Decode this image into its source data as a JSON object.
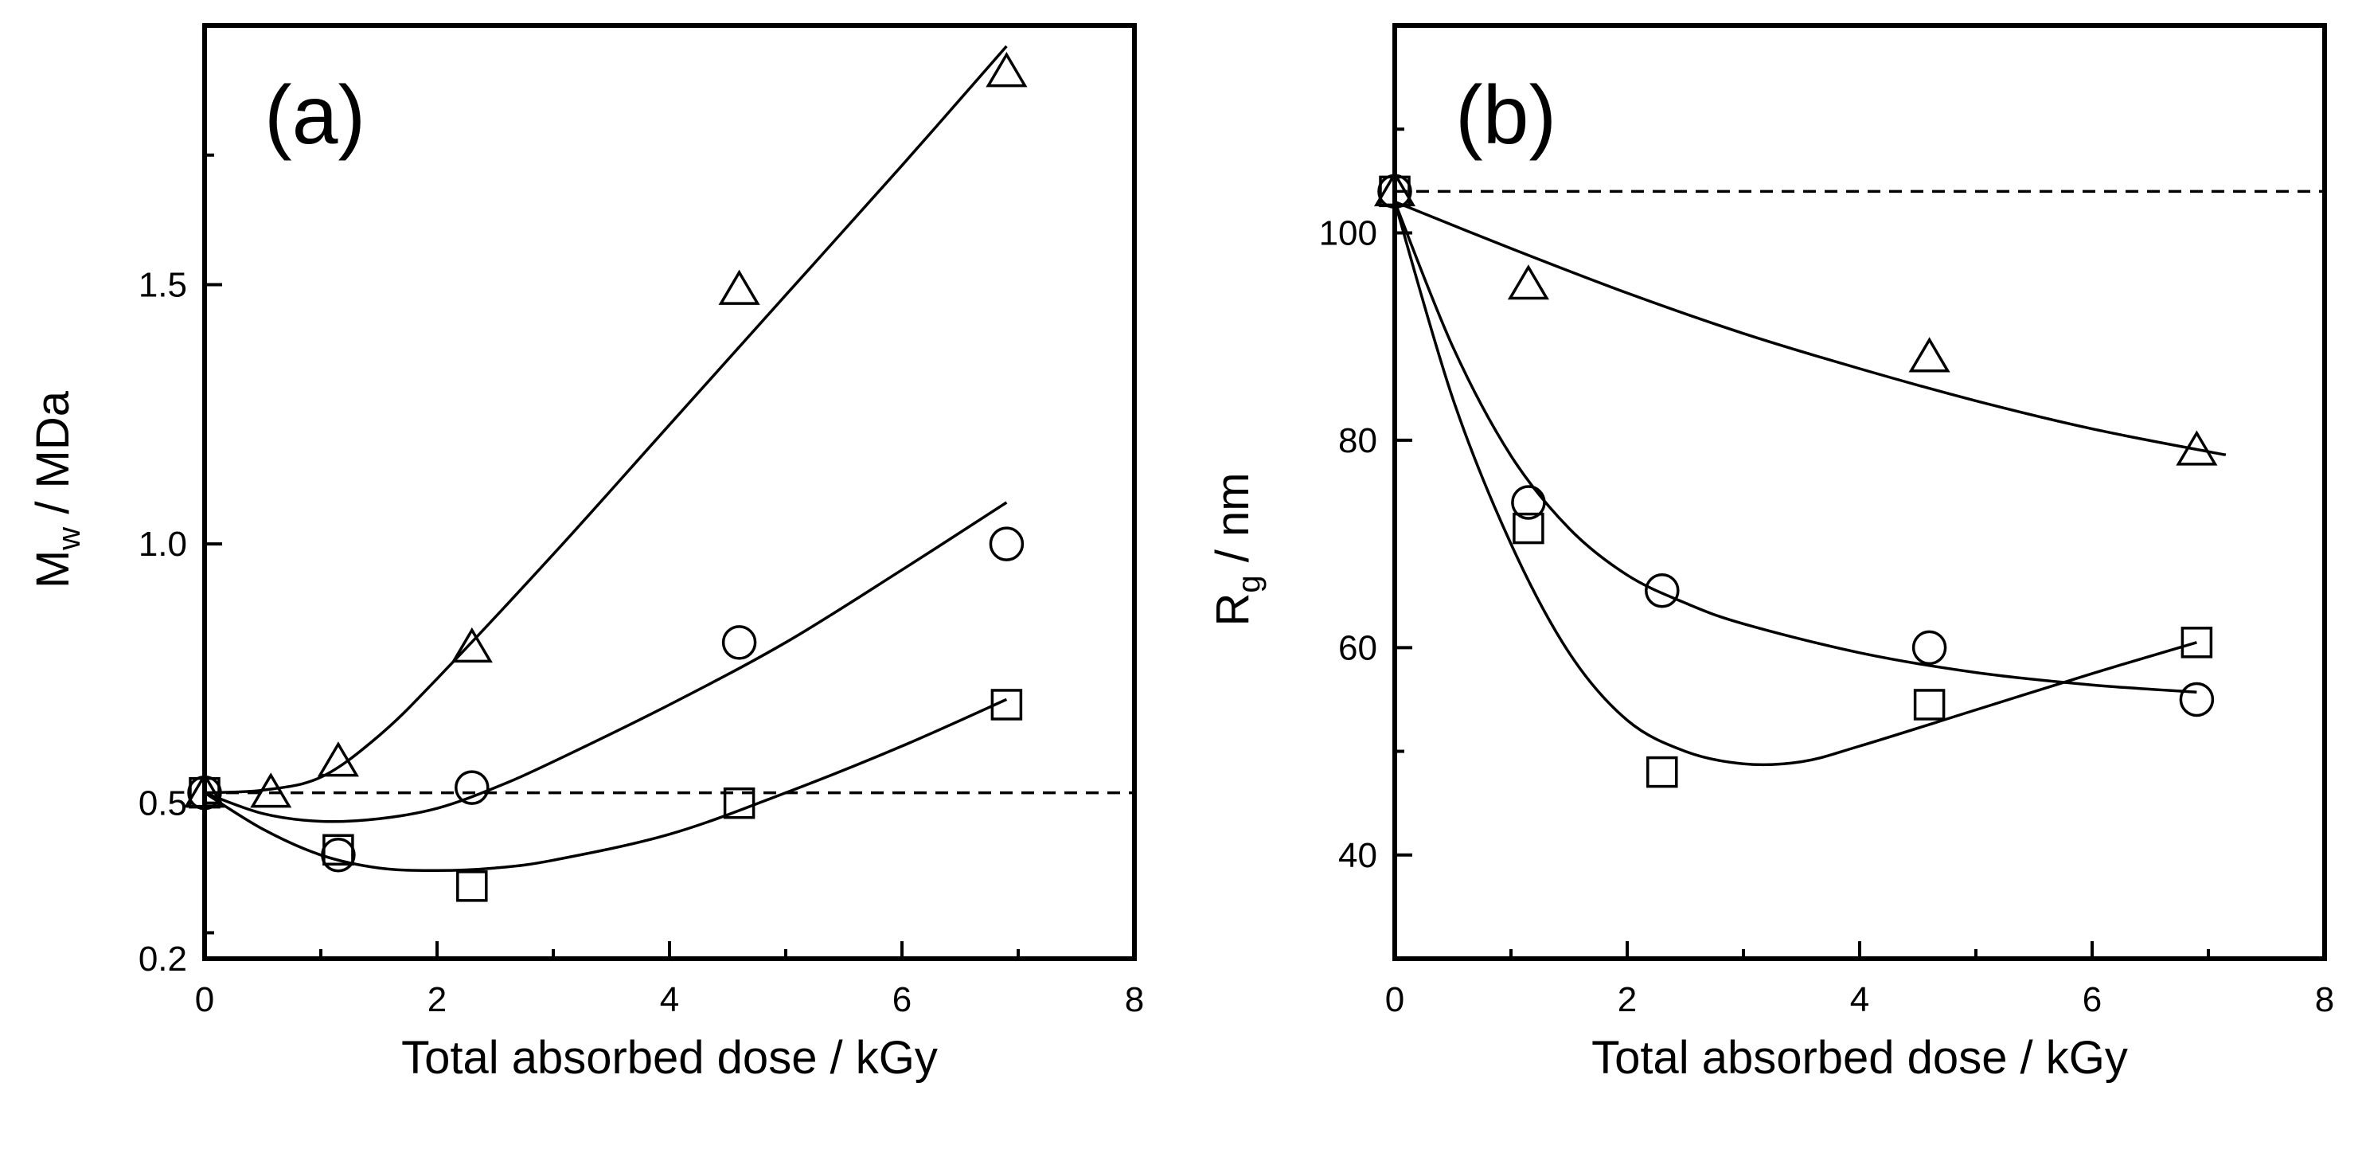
{
  "chart_data": [
    {
      "panel": "(a)",
      "type": "scatter",
      "xlabel": "Total absorbed dose / kGy",
      "ylabel": {
        "main": "M",
        "sub": "w",
        "rest": " / MDa"
      },
      "xlim": [
        0,
        8
      ],
      "ylim": [
        0.2,
        2.0
      ],
      "xticks": [
        "0",
        "2",
        "4",
        "6",
        "8"
      ],
      "yticks": [
        {
          "value": 0.2,
          "label": "0.2"
        },
        {
          "value": 0.5,
          "label": "0.5"
        },
        {
          "value": 1.0,
          "label": "1.0"
        },
        {
          "value": 1.5,
          "label": "1.5"
        }
      ],
      "reference_line": {
        "y": 0.52,
        "style": "dashed"
      },
      "series": [
        {
          "name": "triangle",
          "marker": "triangle",
          "x": [
            0,
            0.57,
            1.15,
            2.3,
            4.6,
            6.9
          ],
          "y": [
            0.52,
            0.52,
            0.58,
            0.8,
            1.49,
            1.91
          ]
        },
        {
          "name": "circle",
          "marker": "circle",
          "x": [
            0,
            1.15,
            2.3,
            4.6,
            6.9
          ],
          "y": [
            0.52,
            0.4,
            0.53,
            0.81,
            1.0
          ]
        },
        {
          "name": "square",
          "marker": "square",
          "x": [
            0,
            1.15,
            2.3,
            4.6,
            6.9
          ],
          "y": [
            0.52,
            0.41,
            0.34,
            0.5,
            0.69
          ]
        }
      ],
      "fits": [
        {
          "name": "triangle-fit",
          "x": [
            0,
            0.5,
            1.0,
            1.5,
            2.0,
            3.0,
            4.0,
            5.0,
            6.0,
            6.9
          ],
          "y": [
            0.52,
            0.525,
            0.55,
            0.63,
            0.74,
            0.98,
            1.23,
            1.48,
            1.73,
            1.96
          ]
        },
        {
          "name": "circle-fit",
          "x": [
            0,
            0.5,
            1.0,
            1.5,
            2.0,
            2.5,
            3.0,
            4.0,
            5.0,
            6.0,
            6.9
          ],
          "y": [
            0.52,
            0.48,
            0.465,
            0.47,
            0.49,
            0.53,
            0.58,
            0.69,
            0.81,
            0.95,
            1.08
          ]
        },
        {
          "name": "square-fit",
          "x": [
            0,
            0.5,
            1.0,
            1.5,
            2.0,
            2.5,
            3.0,
            4.0,
            5.0,
            6.0,
            6.9
          ],
          "y": [
            0.52,
            0.45,
            0.4,
            0.375,
            0.37,
            0.375,
            0.39,
            0.44,
            0.52,
            0.61,
            0.7
          ]
        }
      ]
    },
    {
      "panel": "(b)",
      "type": "scatter",
      "xlabel": "Total absorbed dose / kGy",
      "ylabel": {
        "main": "R",
        "sub": "g",
        "rest": " / nm"
      },
      "xlim": [
        0,
        8
      ],
      "ylim": [
        30,
        120
      ],
      "xticks": [
        "0",
        "2",
        "4",
        "6",
        "8"
      ],
      "yticks": [
        {
          "value": 40,
          "label": "40"
        },
        {
          "value": 60,
          "label": "60"
        },
        {
          "value": 80,
          "label": "80"
        },
        {
          "value": 100,
          "label": "100"
        }
      ],
      "reference_line": {
        "y": 104,
        "style": "dashed"
      },
      "series": [
        {
          "name": "triangle",
          "marker": "triangle",
          "x": [
            0,
            1.15,
            4.6,
            6.9
          ],
          "y": [
            104,
            95,
            88,
            79
          ]
        },
        {
          "name": "circle",
          "marker": "circle",
          "x": [
            0,
            1.15,
            2.3,
            4.6,
            6.9
          ],
          "y": [
            104,
            74,
            65.5,
            60,
            55
          ]
        },
        {
          "name": "square",
          "marker": "square",
          "x": [
            0,
            1.15,
            2.3,
            4.6,
            6.9
          ],
          "y": [
            104,
            71.5,
            48,
            54.5,
            60.5
          ]
        }
      ],
      "fits": [
        {
          "name": "triangle-fit",
          "x": [
            0,
            1,
            2,
            3,
            4,
            5,
            6,
            7,
            7.15
          ],
          "y": [
            103,
            98.5,
            94.2,
            90.3,
            86.9,
            83.8,
            81.1,
            78.9,
            78.6
          ]
        },
        {
          "name": "circle-fit",
          "x": [
            0,
            0.5,
            1,
            1.5,
            2,
            2.5,
            3,
            4,
            5,
            6,
            6.9
          ],
          "y": [
            103,
            89,
            78.5,
            71.5,
            67,
            64.3,
            62.3,
            59.5,
            57.6,
            56.4,
            55.7
          ]
        },
        {
          "name": "square-fit",
          "x": [
            0,
            0.5,
            1,
            1.5,
            2,
            2.5,
            3,
            3.5,
            4,
            5,
            6,
            6.9
          ],
          "y": [
            103,
            84,
            70,
            59.5,
            53,
            50,
            48.8,
            49,
            50.5,
            54,
            57.5,
            60.5
          ]
        }
      ]
    }
  ]
}
